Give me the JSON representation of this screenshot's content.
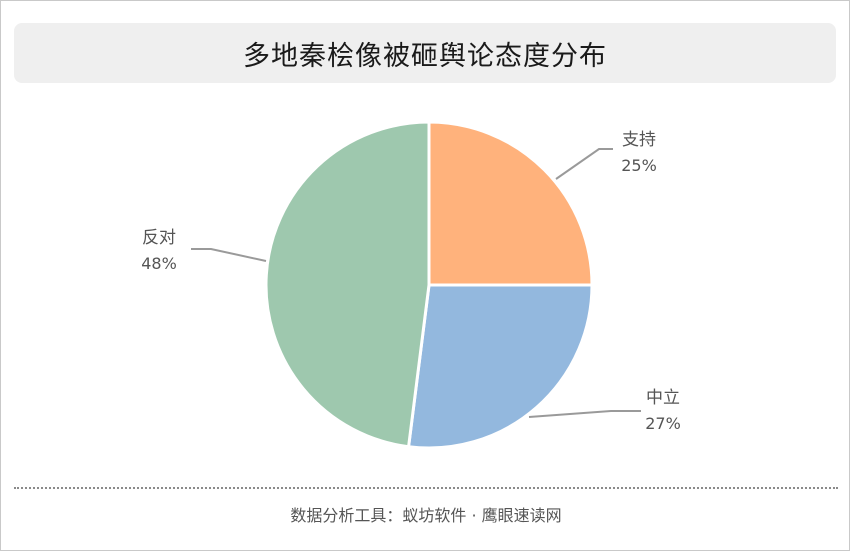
{
  "title": "多地秦桧像被砸舆论态度分布",
  "footer": "数据分析工具：蚁坊软件 · 鹰眼速读网",
  "chart_data": {
    "type": "pie",
    "title": "多地秦桧像被砸舆论态度分布",
    "slices": [
      {
        "label": "支持",
        "value": 25,
        "value_label": "25%",
        "color": "#FFB27C"
      },
      {
        "label": "中立",
        "value": 27,
        "value_label": "27%",
        "color": "#93B8DE"
      },
      {
        "label": "反对",
        "value": 48,
        "value_label": "48%",
        "color": "#9EC8AE"
      }
    ],
    "start_angle_deg": 0,
    "direction": "clockwise",
    "legend": "none",
    "label_style": "outside-with-leader-lines"
  }
}
